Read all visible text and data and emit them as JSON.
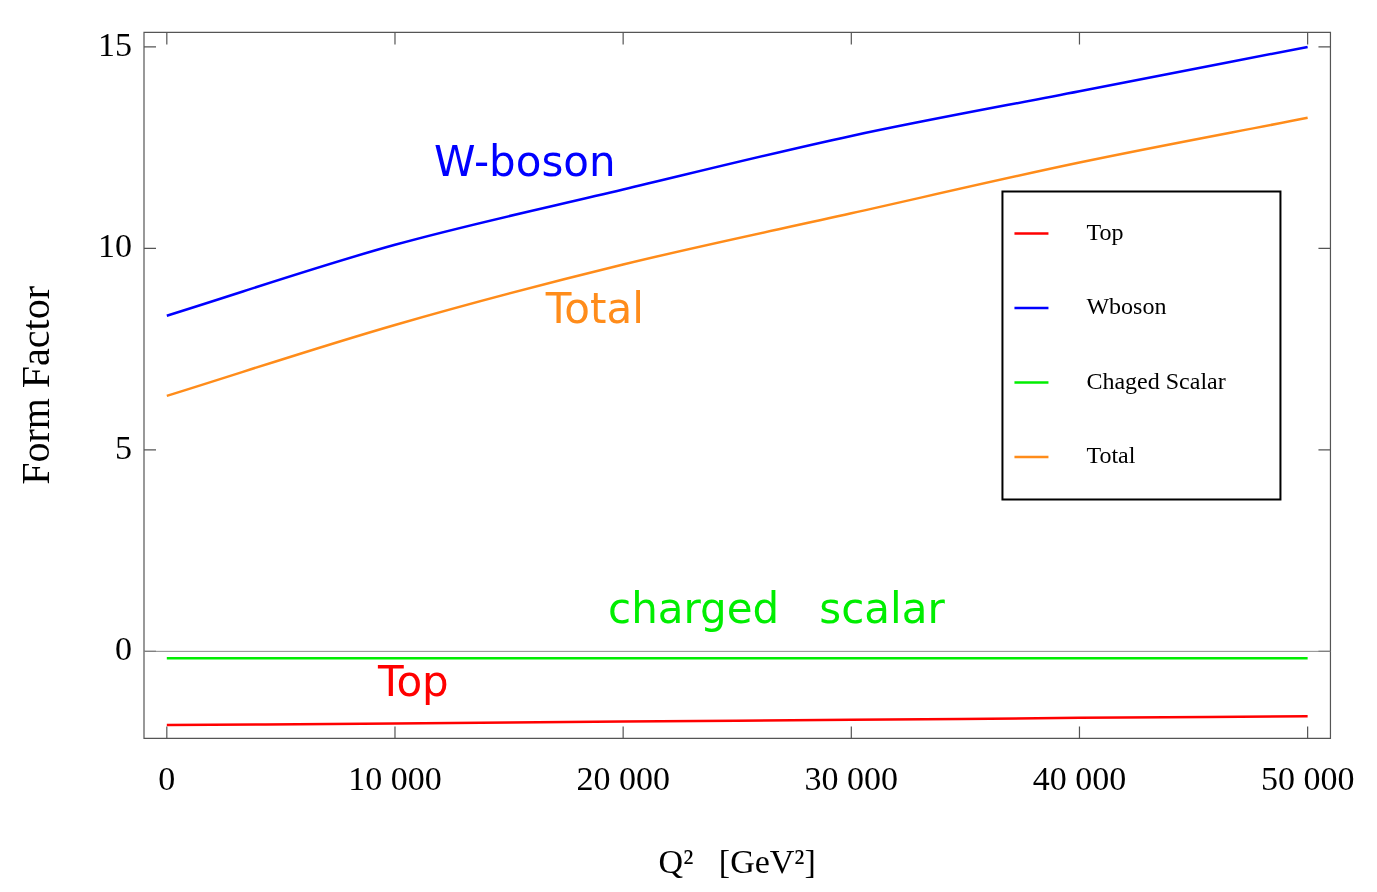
{
  "chart_data": {
    "type": "line",
    "xlabel": "Q²   [GeV²]",
    "ylabel": "Form Factor",
    "x": [
      0,
      10000,
      20000,
      30000,
      40000,
      50000
    ],
    "series": [
      {
        "name": "Top",
        "color": "#ff0000",
        "values": [
          -1.83,
          -1.79,
          -1.74,
          -1.7,
          -1.65,
          -1.61
        ]
      },
      {
        "name": "Wboson",
        "color": "#0000ff",
        "values": [
          8.33,
          10.09,
          11.46,
          12.79,
          13.9,
          15.0
        ]
      },
      {
        "name": "Chaged Scalar",
        "color": "#00ee00",
        "values": [
          -0.17,
          -0.17,
          -0.17,
          -0.17,
          -0.17,
          -0.17
        ]
      },
      {
        "name": "Total",
        "color": "#ff8c1a",
        "values": [
          6.34,
          8.1,
          9.6,
          10.87,
          12.13,
          13.24
        ]
      }
    ],
    "annotations": [
      "Top",
      "W-boson",
      "charged   scalar",
      "Total"
    ],
    "ref_lines": [
      {
        "axis": "y",
        "value": 0,
        "color": "#888888"
      }
    ],
    "xlim": [
      -1000,
      51000
    ],
    "ylim": [
      -2.16,
      15.36
    ],
    "xticks": [
      0,
      {
        "value": 10000,
        "label": "10 000"
      },
      {
        "value": 20000,
        "label": "20 000"
      },
      {
        "value": 30000,
        "label": "30 000"
      },
      {
        "value": 40000,
        "label": "40 000"
      },
      {
        "value": 50000,
        "label": "50 000"
      }
    ],
    "yticks": [
      0,
      5,
      10,
      15
    ],
    "legend": "right",
    "grid": false,
    "marker": "none",
    "line_style": "solid"
  }
}
